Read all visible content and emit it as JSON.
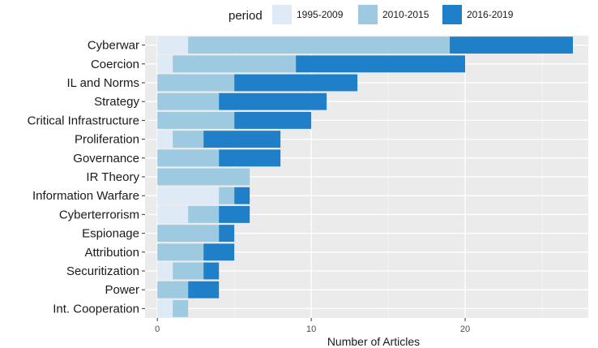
{
  "chart_data": {
    "type": "bar",
    "orientation": "horizontal",
    "stacked": true,
    "title": "",
    "xlabel": "Number of Articles",
    "ylabel": "",
    "xlim": [
      -0.8,
      28
    ],
    "xticks": [
      0,
      10,
      20
    ],
    "grid": true,
    "legend_position": "top",
    "legend_title": "period",
    "categories": [
      "Cyberwar",
      "Coercion",
      "IL and Norms",
      "Strategy",
      "Critical Infrastructure",
      "Proliferation",
      "Governance",
      "IR Theory",
      "Information Warfare",
      "Cyberterrorism",
      "Espionage",
      "Attribution",
      "Securitization",
      "Power",
      "Int. Cooperation"
    ],
    "series": [
      {
        "name": "1995-2009",
        "color": "#deebf7",
        "values": [
          2,
          1,
          0,
          0,
          0,
          1,
          0,
          0,
          4,
          2,
          0,
          0,
          1,
          0,
          1
        ]
      },
      {
        "name": "2010-2015",
        "color": "#9ecae1",
        "values": [
          17,
          8,
          5,
          4,
          5,
          2,
          4,
          6,
          1,
          2,
          4,
          3,
          2,
          2,
          1
        ]
      },
      {
        "name": "2016-2019",
        "color": "#1f7fc8",
        "values": [
          8,
          11,
          8,
          7,
          5,
          5,
          4,
          0,
          1,
          2,
          1,
          2,
          1,
          2,
          0
        ]
      }
    ]
  }
}
